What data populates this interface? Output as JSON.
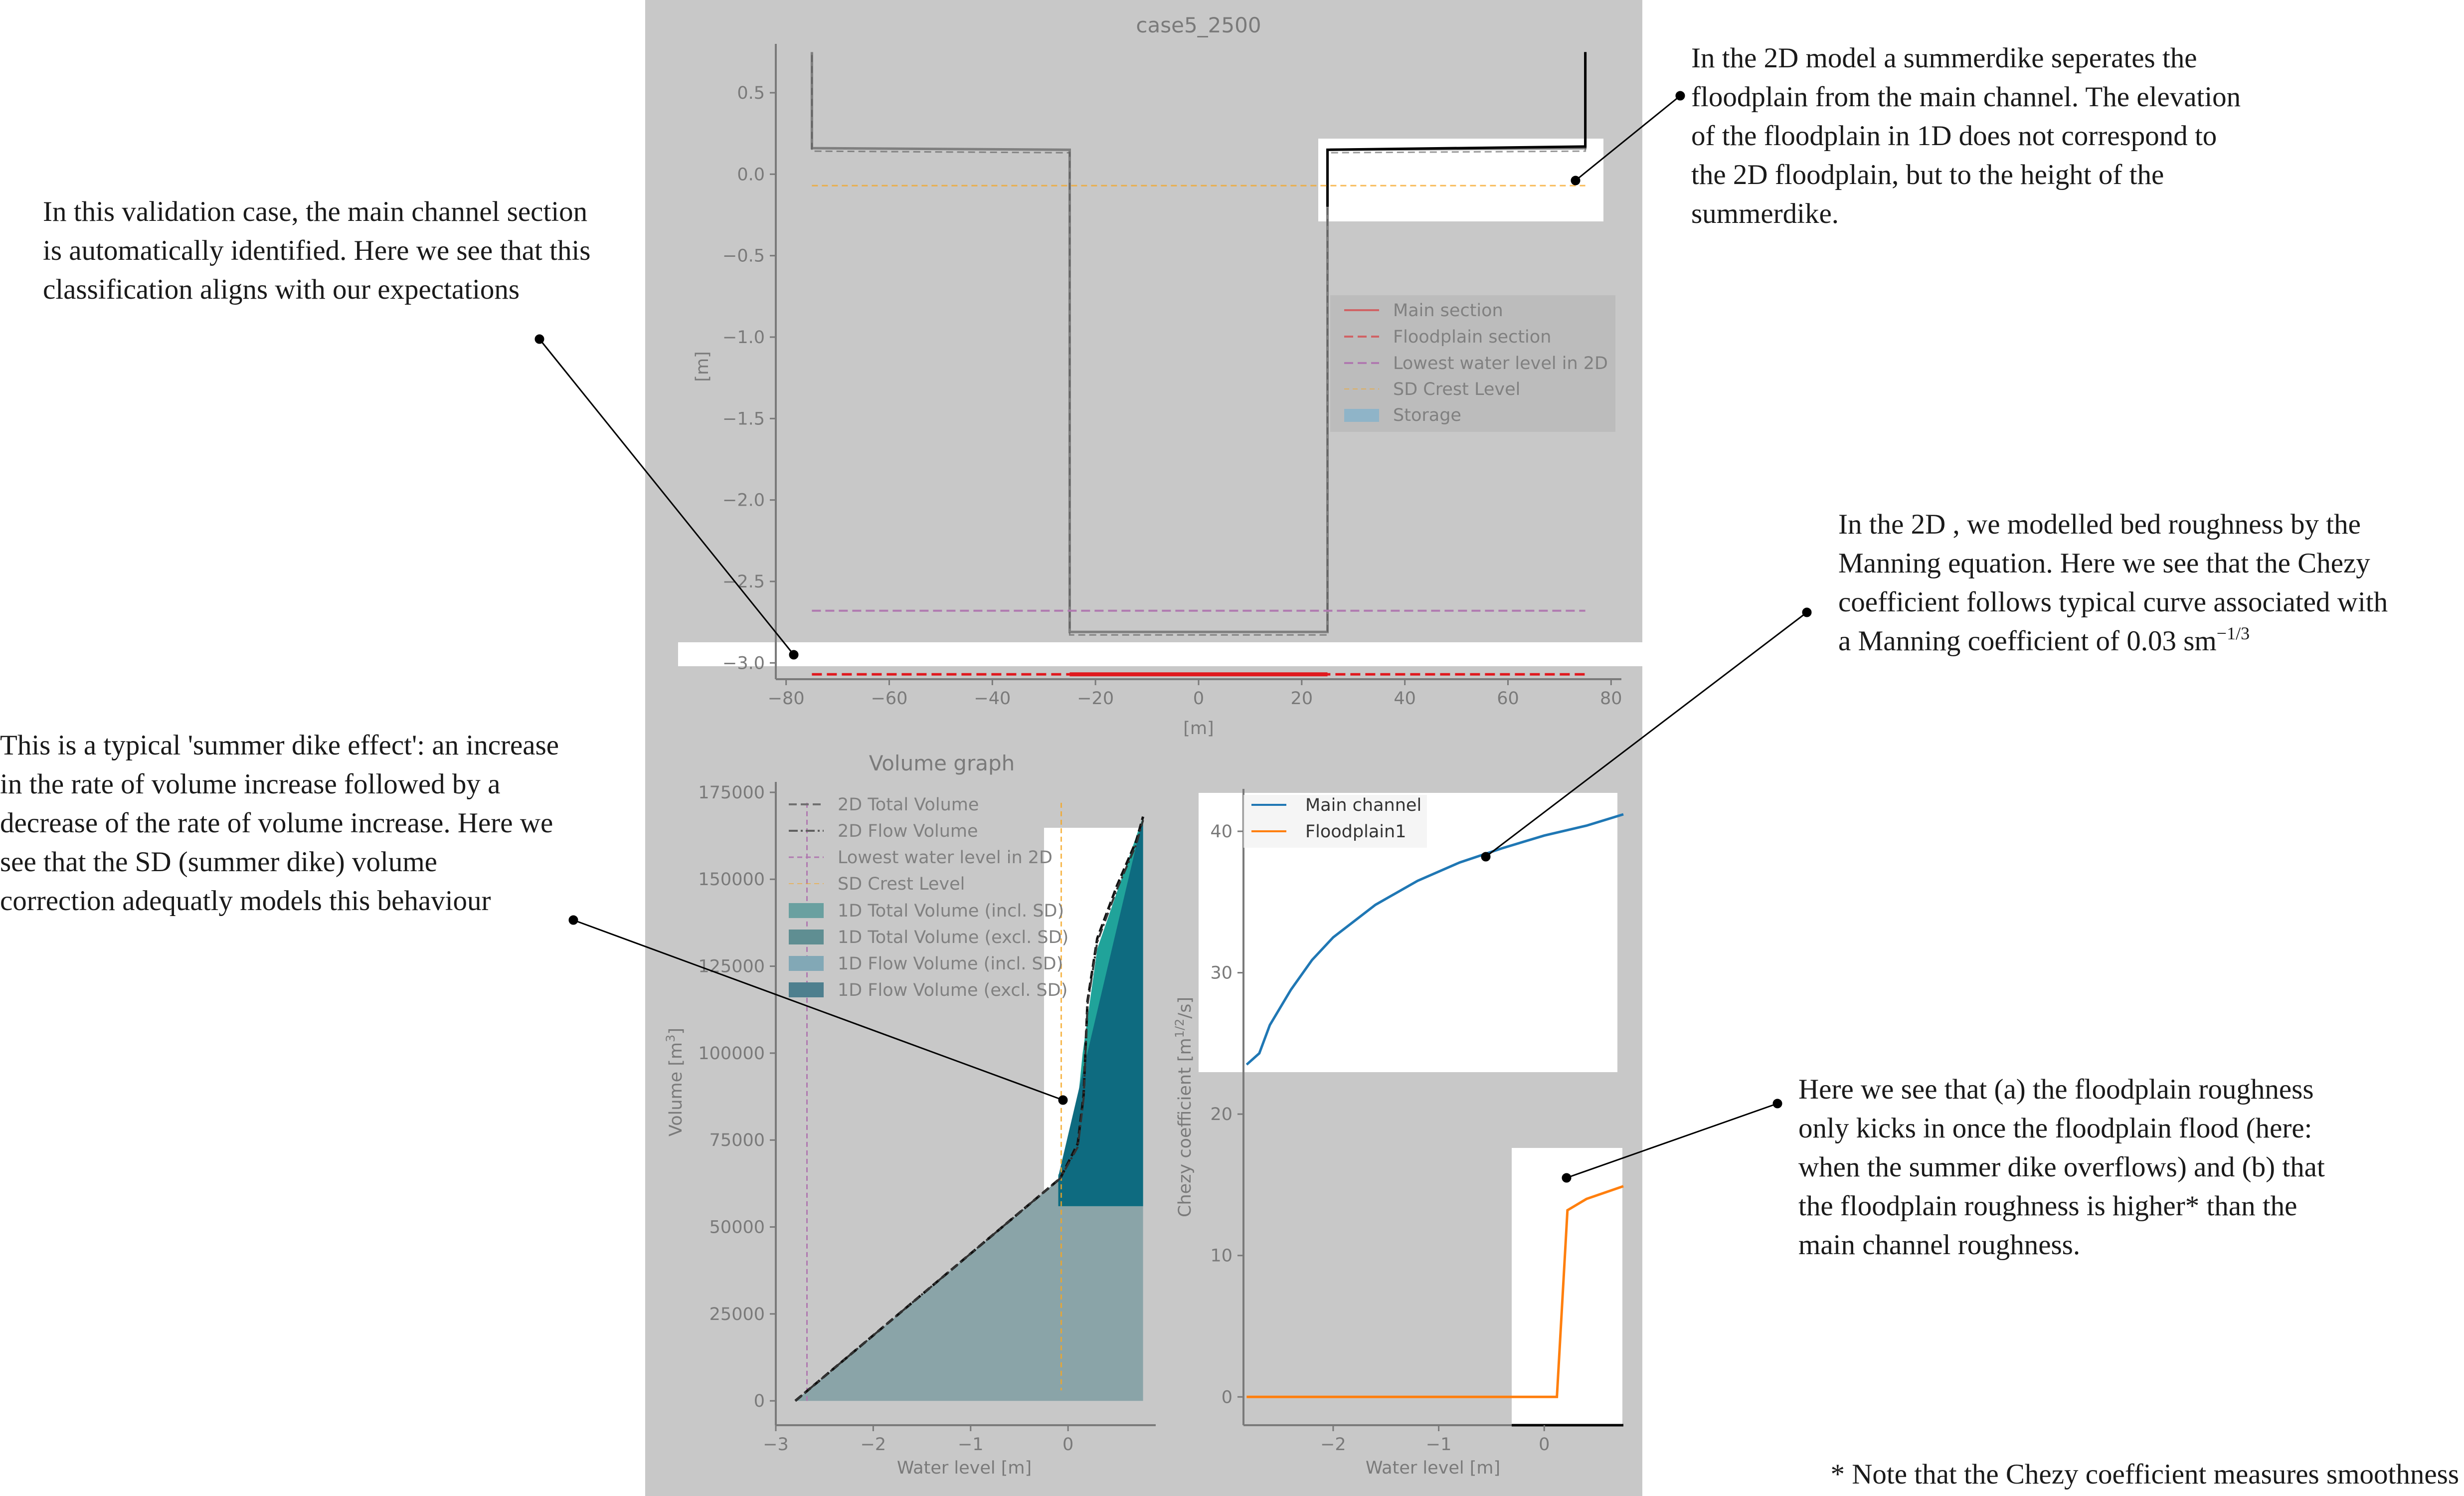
{
  "colors": {
    "panel_background": "#c8c8c8",
    "annotation_highlight": "#ffffff",
    "main_section": "#e0191e",
    "floodplain_section": "#e0191e",
    "lowest_water_level_2d": "#b07ab0",
    "sd_crest_level": "#f5a623",
    "storage": "#8fb4c8",
    "profile_line": "#7f7f7f",
    "main_channel_curve": "#1f77b4",
    "floodplain1_curve": "#ff7f0e",
    "volume_fill_incl_sd": "#20a39a",
    "volume_fill_excl_sd": "#0e6b80",
    "volume_fill_flow": "#8aa4a8"
  },
  "notes": {
    "top_right": [
      "In the 2D model a summerdike seperates the",
      "floodplain from the main channel. The elevation",
      "of the floodplain in 1D does not correspond to",
      "the 2D floodplain, but to the height of the",
      "summerdike."
    ],
    "top_left": [
      "In this validation case, the main channel section",
      "is automatically identified. Here we see that this",
      "classification aligns with our expectations"
    ],
    "mid_right": {
      "lines": [
        "In the 2D , we modelled bed roughness by the",
        "Manning equation. Here we see that the Chezy",
        "coefficient follows typical curve associated with"
      ],
      "last_line_text": "a Manning coefficient of 0.03 sm",
      "last_line_superscript": "−1/3"
    },
    "mid_left": [
      "This is a typical 'summer dike effect': an increase",
      "in the rate of volume increase followed by a",
      "decrease of the rate of volume increase. Here we",
      "see that the SD (summer dike) volume",
      "correction adequatly models this behaviour"
    ],
    "bottom_right": [
      "Here we see that (a) the floodplain roughness",
      "only kicks in once the floodplain flood (here:",
      "when the summer dike overflows) and (b) that",
      "the floodplain roughness is higher* than the",
      "main channel roughness."
    ],
    "footnote": "* Note that the Chezy coefficient measures smoothness"
  },
  "chart_data": [
    {
      "type": "line",
      "title": "case5_2500",
      "xlabel": "[m]",
      "ylabel": "[m]",
      "xlim": [
        -82,
        82
      ],
      "ylim": [
        -3.1,
        0.8
      ],
      "xticks": [
        "−80",
        "−60",
        "−40",
        "−20",
        "0",
        "20",
        "40",
        "60",
        "80"
      ],
      "yticks": [
        "−3.0",
        "−2.5",
        "−2.0",
        "−1.5",
        "−1.0",
        "−0.5",
        "0.0",
        "0.5"
      ],
      "legend_position": "center-right",
      "legend": [
        "Main section",
        "Floodplain section",
        "Lowest water level in 2D",
        "SD Crest Level",
        "Storage"
      ],
      "series": [
        {
          "name": "Main section",
          "x": [
            -25,
            25
          ],
          "y": [
            -3.07,
            -3.07
          ]
        },
        {
          "name": "Floodplain section",
          "x": [
            -75,
            75
          ],
          "y": [
            -3.07,
            -3.07
          ]
        },
        {
          "name": "Lowest water level in 2D",
          "x": [
            -75,
            75
          ],
          "y": [
            -2.68,
            -2.68
          ]
        },
        {
          "name": "SD Crest Level",
          "x": [
            -75,
            75
          ],
          "y": [
            -0.07,
            -0.07
          ]
        },
        {
          "name": "",
          "x": [
            -75,
            -75,
            -25,
            -25,
            25,
            25,
            75,
            75
          ],
          "y": [
            0.75,
            0.16,
            0.15,
            -2.81,
            -2.81,
            0.15,
            0.16,
            0.75
          ]
        }
      ]
    },
    {
      "type": "area",
      "title": "Volume graph",
      "xlabel": "Water level [m]",
      "ylabel": "Volume [m",
      "ylabel_superscript": "3",
      "ylabel_suffix": "]",
      "xlim": [
        -3,
        0.9
      ],
      "ylim": [
        -7000,
        178000
      ],
      "xticks": [
        "−3",
        "−2",
        "−1",
        "0"
      ],
      "yticks": [
        "0",
        "25000",
        "50000",
        "75000",
        "100000",
        "125000",
        "150000",
        "175000"
      ],
      "legend_position": "upper-left",
      "legend": [
        "2D Total Volume",
        "2D Flow Volume",
        "Lowest water level in 2D",
        "SD Crest Level",
        "1D Total Volume (incl. SD)",
        "1D Total Volume (excl. SD)",
        "1D Flow Volume (incl. SD)",
        "1D Flow Volume (excl. SD)"
      ],
      "series": [
        {
          "name": "2D Total Volume",
          "x": [
            -2.8,
            -0.08,
            0.1,
            0.16,
            0.2,
            0.3,
            0.5,
            0.7,
            0.77
          ],
          "y": [
            0,
            64000,
            74000,
            88000,
            115000,
            133000,
            148000,
            161000,
            168000
          ]
        },
        {
          "name": "2D Flow Volume",
          "x": [
            -2.8,
            -0.08,
            0.1,
            0.16,
            0.2,
            0.3,
            0.5,
            0.7,
            0.77
          ],
          "y": [
            0,
            64000,
            73000,
            87000,
            114000,
            132000,
            147000,
            160000,
            167000
          ]
        },
        {
          "name": "1D Total Volume (incl. SD)",
          "x": [
            -0.1,
            0.05,
            0.15,
            0.3,
            0.6,
            0.77
          ],
          "y": [
            65000,
            72000,
            100000,
            130000,
            155000,
            168000
          ]
        },
        {
          "name": "1D Flow Volume (excl. SD)",
          "x": [
            -2.8,
            0.77
          ],
          "y": [
            0,
            168000
          ]
        }
      ],
      "markers": {
        "lowest_water_level_x": -2.68,
        "sd_crest_level_x": -0.07
      }
    },
    {
      "type": "line",
      "title": "",
      "xlabel": "Water level [m]",
      "ylabel": "Chezy coefficient [m",
      "ylabel_superscript": "1/2",
      "ylabel_suffix": "/s]",
      "xlim": [
        -2.85,
        0.75
      ],
      "ylim": [
        -2,
        43
      ],
      "xticks": [
        "−2",
        "−1",
        "0"
      ],
      "yticks": [
        "0",
        "10",
        "20",
        "30",
        "40"
      ],
      "legend_position": "upper-left",
      "legend": [
        "Main channel",
        "Floodplain1"
      ],
      "series": [
        {
          "name": "Main channel",
          "x": [
            -2.82,
            -2.7,
            -2.6,
            -2.4,
            -2.2,
            -2.0,
            -1.6,
            -1.2,
            -0.8,
            -0.4,
            0.0,
            0.4,
            0.75
          ],
          "y": [
            23.5,
            24.3,
            26.3,
            28.8,
            30.9,
            32.5,
            34.8,
            36.5,
            37.8,
            38.8,
            39.7,
            40.4,
            41.2
          ]
        },
        {
          "name": "Floodplain1",
          "x": [
            -2.82,
            0.12,
            0.22,
            0.4,
            0.75
          ],
          "y": [
            0,
            0,
            13.2,
            14.0,
            14.9
          ]
        }
      ]
    }
  ]
}
